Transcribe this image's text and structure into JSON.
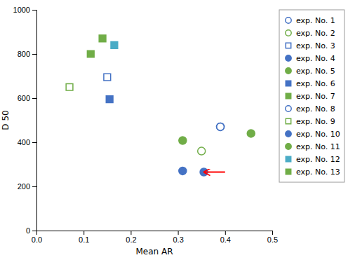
{
  "chart_data": {
    "type": "scatter",
    "xlabel": "Mean AR",
    "ylabel": "D 50",
    "xlim": [
      0,
      0.5
    ],
    "ylim": [
      0,
      1000
    ],
    "xticks": [
      {
        "value": 0,
        "label": "0.0"
      },
      0.1,
      0.2,
      0.3,
      0.4,
      0.5
    ],
    "yticks": [
      0,
      200,
      400,
      600,
      800,
      1000
    ],
    "legend": "right",
    "series": [
      {
        "name": "exp. No. 1",
        "color": "#4472C4",
        "marker": "circle-open",
        "x": [
          0.39
        ],
        "values": [
          470
        ]
      },
      {
        "name": "exp. No. 2",
        "color": "#70AD47",
        "marker": "circle-open",
        "x": [
          0.35
        ],
        "values": [
          360
        ]
      },
      {
        "name": "exp. No. 3",
        "color": "#4472C4",
        "marker": "square-open",
        "x": [
          0.15
        ],
        "values": [
          695
        ]
      },
      {
        "name": "exp. No. 4",
        "color": "#4472C4",
        "marker": "circle",
        "x": [
          0.31
        ],
        "values": [
          270
        ]
      },
      {
        "name": "exp. No. 5",
        "color": "#70AD47",
        "marker": "circle",
        "x": [
          0.31
        ],
        "values": [
          408
        ]
      },
      {
        "name": "exp. No. 6",
        "color": "#4472C4",
        "marker": "square",
        "x": [
          0.155
        ],
        "values": [
          595
        ]
      },
      {
        "name": "exp. No. 7",
        "color": "#70AD47",
        "marker": "square",
        "x": [
          0.14
        ],
        "values": [
          870
        ]
      },
      {
        "name": "exp. No. 8",
        "color": "#4472C4",
        "marker": "circle-open",
        "x": [
          0.39
        ],
        "values": [
          470
        ]
      },
      {
        "name": "exp. No. 9",
        "color": "#70AD47",
        "marker": "square-open",
        "x": [
          0.07
        ],
        "values": [
          650
        ]
      },
      {
        "name": "exp. No. 10",
        "color": "#4472C4",
        "marker": "circle",
        "x": [
          0.355
        ],
        "values": [
          265
        ]
      },
      {
        "name": "exp. No. 11",
        "color": "#70AD47",
        "marker": "circle",
        "x": [
          0.455
        ],
        "values": [
          440
        ]
      },
      {
        "name": "exp. No. 12",
        "color": "#4BACC6",
        "marker": "square",
        "x": [
          0.165
        ],
        "values": [
          840
        ]
      },
      {
        "name": "exp. No. 13",
        "color": "#70AD47",
        "marker": "square",
        "x": [
          0.115
        ],
        "values": [
          800
        ]
      }
    ],
    "annotations": [
      {
        "type": "arrow",
        "x": 0.4,
        "y": 265,
        "x_tip": 0.355,
        "y_tip": 265,
        "color": "red"
      }
    ]
  }
}
